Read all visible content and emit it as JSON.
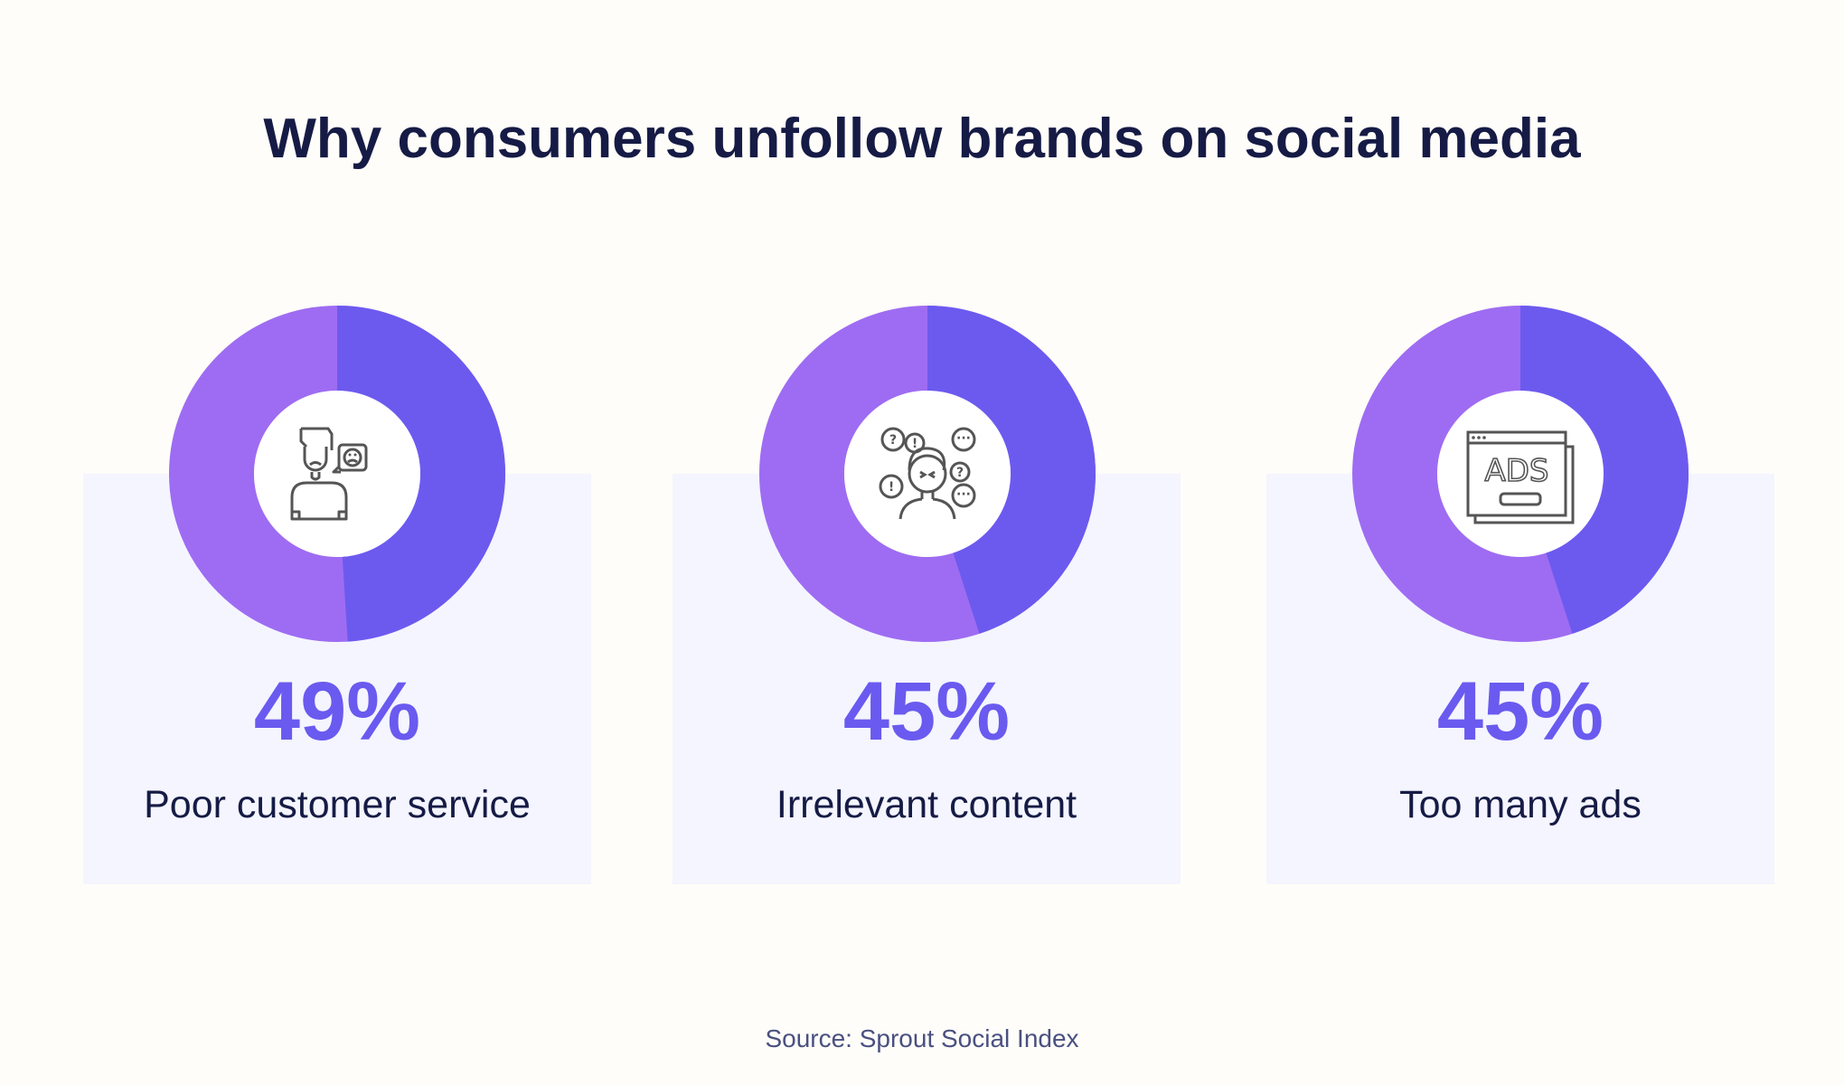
{
  "chart_data": {
    "type": "pie",
    "title": "Why consumers unfollow brands on social media",
    "charts": [
      {
        "value": 49,
        "label": "Poor customer service",
        "display": "49%",
        "icon": "frustrated-person-icon"
      },
      {
        "value": 45,
        "label": "Irrelevant content",
        "display": "45%",
        "icon": "confused-person-icon"
      },
      {
        "value": 45,
        "label": "Too many ads",
        "display": "45%",
        "icon": "ads-window-icon"
      }
    ],
    "source": "Source: Sprout Social Index",
    "colors": {
      "value": "#6c5aef",
      "remainder": "#9e6cf2",
      "panel": "#f4f5ff",
      "accent_text": "#6a5aef"
    }
  }
}
